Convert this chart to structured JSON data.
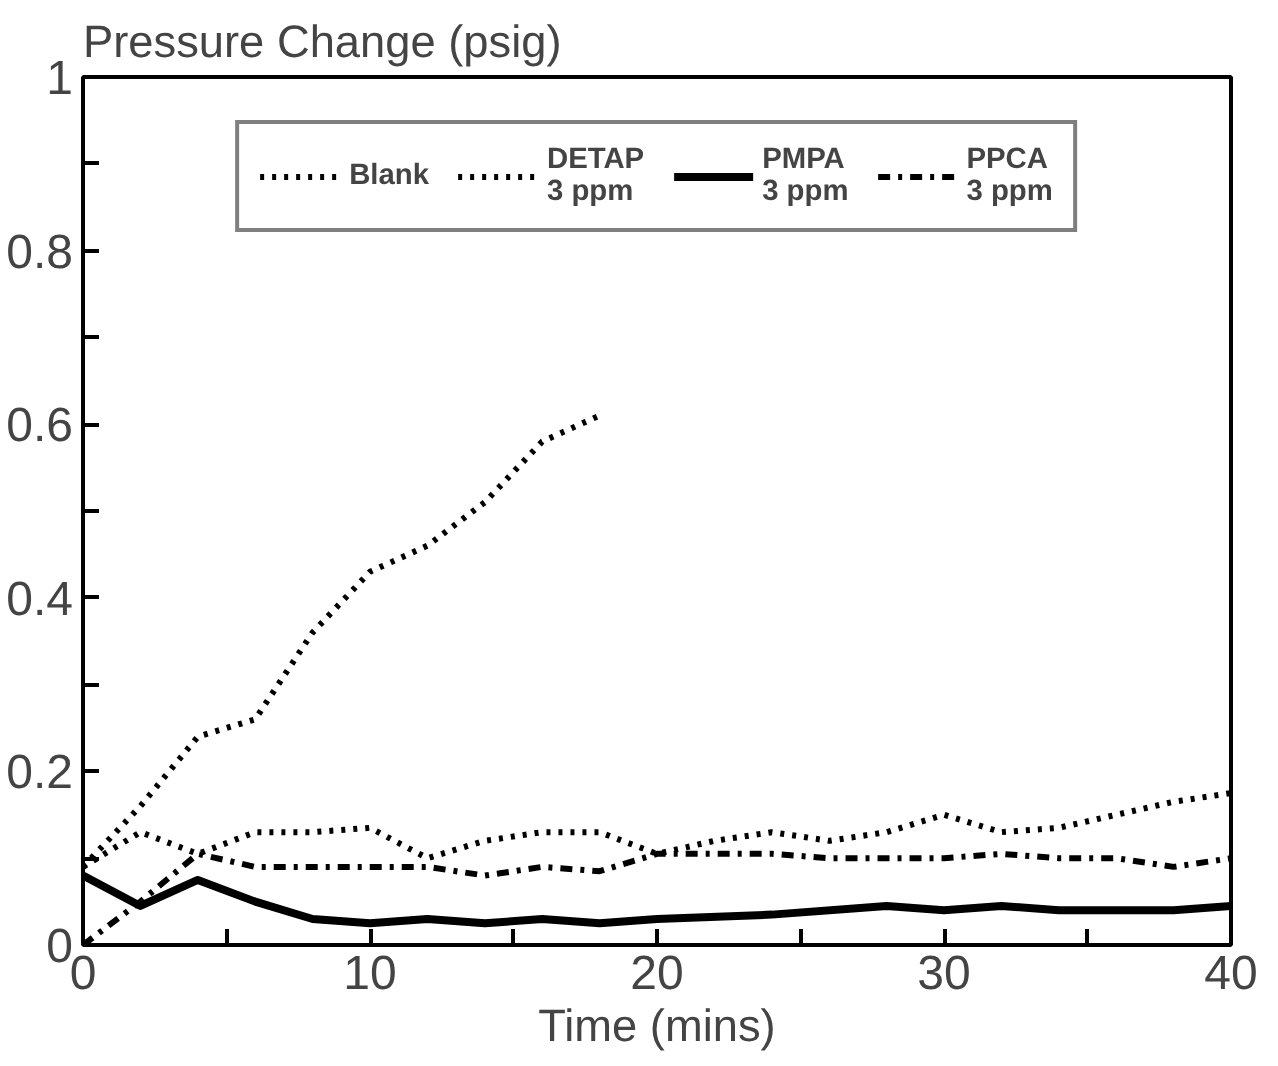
{
  "chart_data": {
    "type": "line",
    "ylabel": "Pressure Change (psig)",
    "xlabel": "Time (mins)",
    "xlim": [
      0,
      40
    ],
    "xticks": [
      0,
      {
        "value": 5,
        "label": null
      },
      10,
      {
        "value": 15,
        "label": null
      },
      20,
      {
        "value": 25,
        "label": null
      },
      30,
      {
        "value": 35,
        "label": null
      },
      40
    ],
    "ylim": [
      0,
      1
    ],
    "yticks": [
      0,
      {
        "value": 0.1,
        "label": null
      },
      0.2,
      {
        "value": 0.3,
        "label": null
      },
      0.4,
      {
        "value": 0.5,
        "label": null
      },
      0.6,
      {
        "value": 0.7,
        "label": null
      },
      0.8,
      {
        "value": 0.9,
        "label": null
      },
      1
    ],
    "grid": false,
    "legend": "top",
    "marker": "none",
    "series": [
      {
        "name": "Blank",
        "color": "#000000",
        "line_style": "dotted",
        "x": [
          0,
          2,
          4,
          6,
          7,
          8,
          10,
          12,
          14,
          16,
          18
        ],
        "values": [
          0.09,
          0.16,
          0.24,
          0.26,
          0.31,
          0.36,
          0.43,
          0.46,
          0.51,
          0.58,
          0.61
        ]
      },
      {
        "name": "DETAP\n3 ppm",
        "color": "#000000",
        "line_style": "dotted",
        "x": [
          0,
          2,
          4,
          6,
          8,
          10,
          12,
          14,
          16,
          18,
          20,
          22,
          24,
          26,
          28,
          30,
          32,
          34,
          36,
          38,
          40
        ],
        "values": [
          0.09,
          0.13,
          0.105,
          0.13,
          0.13,
          0.135,
          0.1,
          0.12,
          0.13,
          0.13,
          0.105,
          0.12,
          0.13,
          0.12,
          0.13,
          0.15,
          0.13,
          0.135,
          0.15,
          0.165,
          0.175
        ]
      },
      {
        "name": "PMPA\n3 ppm",
        "color": "#000000",
        "line_style": "solid",
        "x": [
          0,
          2,
          4,
          6,
          8,
          10,
          12,
          14,
          16,
          18,
          20,
          24,
          28,
          30,
          32,
          34,
          38,
          40
        ],
        "values": [
          0.08,
          0.045,
          0.075,
          0.05,
          0.03,
          0.025,
          0.03,
          0.025,
          0.03,
          0.025,
          0.03,
          0.035,
          0.045,
          0.04,
          0.045,
          0.04,
          0.04,
          0.045
        ]
      },
      {
        "name": "PPCA\n3 ppm",
        "color": "#000000",
        "line_style": "dashdot",
        "x": [
          0,
          2,
          4,
          6,
          8,
          10,
          12,
          14,
          16,
          18,
          20,
          22,
          24,
          26,
          28,
          30,
          32,
          34,
          36,
          38,
          40
        ],
        "values": [
          0.0,
          0.05,
          0.105,
          0.09,
          0.09,
          0.09,
          0.09,
          0.08,
          0.09,
          0.085,
          0.105,
          0.105,
          0.105,
          0.1,
          0.1,
          0.1,
          0.105,
          0.1,
          0.1,
          0.09,
          0.1
        ]
      }
    ]
  }
}
